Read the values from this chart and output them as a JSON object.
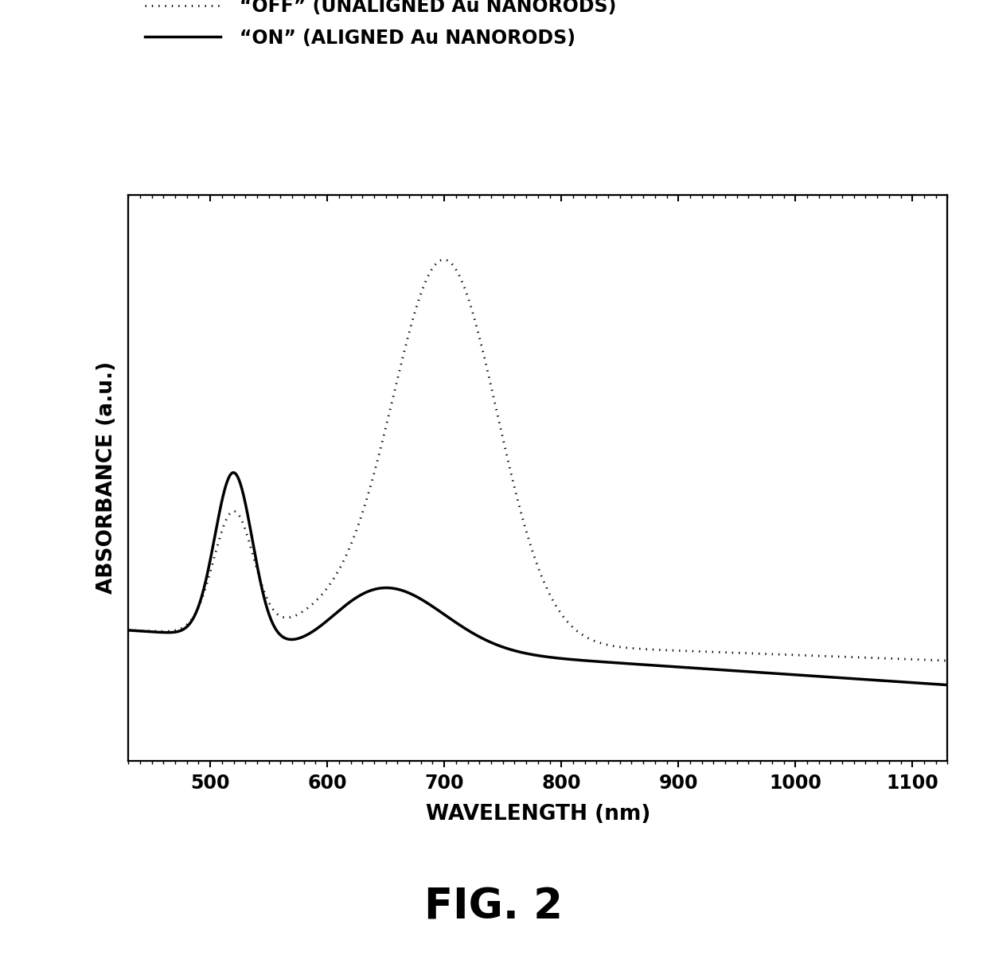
{
  "xlabel": "WAVELENGTH (nm)",
  "ylabel": "ABSORBANCE (a.u.)",
  "fig_label": "FIG. 2",
  "legend_off_label": "“OFF” (UNALIGNED Au NANORODS)",
  "legend_on_label": "“ON” (ALIGNED Au NANORODS)",
  "xlim": [
    430,
    1130
  ],
  "xticks": [
    500,
    600,
    700,
    800,
    900,
    1000,
    1100
  ],
  "background_color": "#ffffff",
  "line_color": "#000000"
}
